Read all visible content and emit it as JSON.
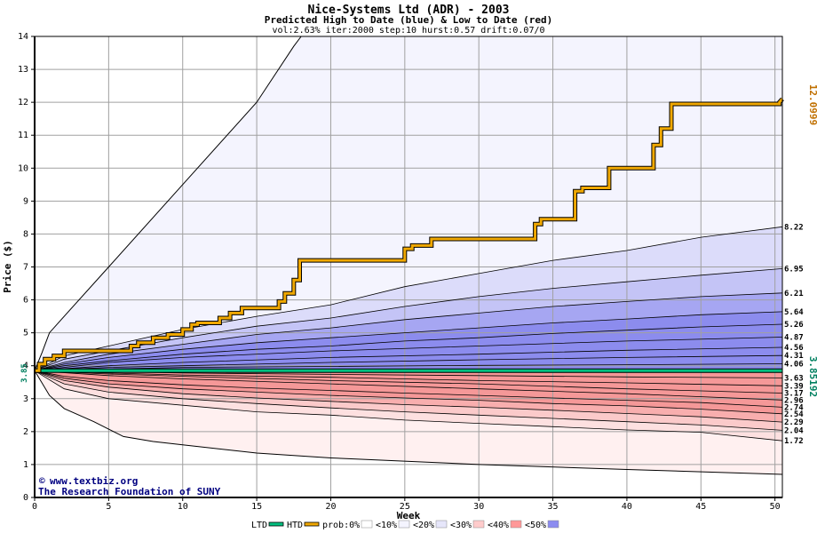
{
  "chart_data": {
    "type": "area",
    "title": "Nice-Systems Ltd (ADR) - 2003",
    "subtitle": "Predicted High to Date (blue) &  Low to Date (red)",
    "params": "vol:2.63% iter:2000 step:10 hurst:0.57 drift:0.07/0",
    "xlabel": "Week",
    "ylabel": "Price ($)",
    "xlim": [
      0,
      50.5
    ],
    "ylim": [
      0,
      14
    ],
    "x_ticks": [
      "0",
      "5",
      "10",
      "15",
      "20",
      "25",
      "30",
      "35",
      "40",
      "45",
      "50"
    ],
    "y_ticks": [
      "0",
      "1",
      "2",
      "3",
      "4",
      "5",
      "6",
      "7",
      "8",
      "9",
      "10",
      "11",
      "12",
      "13",
      "14"
    ],
    "grid": true,
    "start_price": 3.85,
    "start_label": "3.85",
    "high_final_label": "12.0999",
    "low_final_label": "3.85192",
    "end_levels": [
      "8.22",
      "6.95",
      "6.21",
      "5.64",
      "5.26",
      "4.87",
      "4.56",
      "4.31",
      "4.06",
      "3.63",
      "3.39",
      "3.17",
      "2.96",
      "2.74",
      "2.54",
      "2.29",
      "2.04",
      "1.72"
    ],
    "upper_envelope": {
      "x": [
        0,
        0.5,
        1,
        2,
        5,
        10,
        15,
        17.5,
        18
      ],
      "y": [
        3.85,
        4.4,
        5.0,
        5.5,
        7.0,
        9.5,
        12.0,
        13.7,
        14
      ]
    },
    "lower_envelope": {
      "x": [
        0,
        1,
        2,
        4,
        6,
        8,
        10,
        15,
        20,
        30,
        40,
        50.5
      ],
      "y": [
        3.85,
        3.1,
        2.7,
        2.3,
        1.85,
        1.7,
        1.6,
        1.35,
        1.2,
        1.0,
        0.85,
        0.7
      ]
    },
    "high_bands": [
      {
        "name": "<10%",
        "x": [
          0,
          2,
          5,
          10,
          15,
          20,
          25,
          30,
          35,
          40,
          45,
          50.5
        ],
        "y": [
          3.85,
          4.3,
          4.6,
          5.1,
          5.5,
          5.85,
          6.4,
          6.8,
          7.2,
          7.5,
          7.9,
          8.22
        ]
      },
      {
        "name": "<20%",
        "x": [
          0,
          2,
          5,
          10,
          15,
          20,
          25,
          30,
          35,
          40,
          45,
          50.5
        ],
        "y": [
          3.85,
          4.2,
          4.45,
          4.85,
          5.2,
          5.45,
          5.8,
          6.1,
          6.35,
          6.55,
          6.75,
          6.95
        ]
      },
      {
        "name": "<30%",
        "x": [
          0,
          2,
          5,
          10,
          15,
          20,
          25,
          30,
          35,
          40,
          45,
          50.5
        ],
        "y": [
          3.85,
          4.1,
          4.35,
          4.65,
          4.95,
          5.15,
          5.4,
          5.6,
          5.8,
          5.95,
          6.1,
          6.21
        ]
      },
      {
        "name": "<40%",
        "x": [
          0,
          2,
          5,
          10,
          15,
          20,
          25,
          30,
          35,
          40,
          45,
          50.5
        ],
        "y": [
          3.85,
          4.05,
          4.25,
          4.5,
          4.7,
          4.85,
          5.0,
          5.15,
          5.3,
          5.42,
          5.55,
          5.64
        ]
      },
      {
        "name": "<50%",
        "x": [
          0,
          2,
          5,
          10,
          15,
          20,
          25,
          30,
          35,
          40,
          45,
          50.5
        ],
        "y": [
          3.85,
          4.0,
          4.15,
          4.35,
          4.5,
          4.6,
          4.75,
          4.85,
          4.98,
          5.08,
          5.18,
          5.26
        ]
      }
    ],
    "high_inner_lines": [
      {
        "x": [
          0,
          5,
          10,
          20,
          30,
          40,
          50.5
        ],
        "y": [
          3.85,
          4.1,
          4.25,
          4.45,
          4.6,
          4.75,
          4.87
        ]
      },
      {
        "x": [
          0,
          5,
          10,
          20,
          30,
          40,
          50.5
        ],
        "y": [
          3.85,
          4.0,
          4.1,
          4.25,
          4.35,
          4.47,
          4.56
        ]
      },
      {
        "x": [
          0,
          5,
          10,
          20,
          30,
          40,
          50.5
        ],
        "y": [
          3.85,
          3.95,
          4.0,
          4.1,
          4.18,
          4.25,
          4.31
        ]
      },
      {
        "x": [
          0,
          5,
          10,
          20,
          30,
          40,
          50.5
        ],
        "y": [
          3.85,
          3.9,
          3.95,
          3.98,
          4.01,
          4.03,
          4.06
        ]
      }
    ],
    "low_bands": [
      {
        "name": "<10%",
        "x": [
          0,
          2,
          5,
          10,
          15,
          20,
          25,
          30,
          35,
          40,
          45,
          50.5
        ],
        "y": [
          3.85,
          3.3,
          3.0,
          2.8,
          2.6,
          2.5,
          2.35,
          2.25,
          2.15,
          2.05,
          1.98,
          1.72
        ]
      },
      {
        "name": "<20%",
        "x": [
          0,
          2,
          5,
          10,
          15,
          20,
          25,
          30,
          35,
          40,
          45,
          50.5
        ],
        "y": [
          3.85,
          3.45,
          3.2,
          3.0,
          2.85,
          2.72,
          2.6,
          2.5,
          2.4,
          2.3,
          2.2,
          2.04
        ]
      },
      {
        "name": "<30%",
        "x": [
          0,
          2,
          5,
          10,
          15,
          20,
          25,
          30,
          35,
          40,
          45,
          50.5
        ],
        "y": [
          3.85,
          3.55,
          3.35,
          3.15,
          3.02,
          2.92,
          2.82,
          2.74,
          2.65,
          2.55,
          2.45,
          2.29
        ]
      },
      {
        "name": "<40%",
        "x": [
          0,
          2,
          5,
          10,
          15,
          20,
          25,
          30,
          35,
          40,
          45,
          50.5
        ],
        "y": [
          3.85,
          3.62,
          3.45,
          3.3,
          3.2,
          3.1,
          3.02,
          2.95,
          2.85,
          2.78,
          2.68,
          2.54
        ]
      },
      {
        "name": "<50%",
        "x": [
          0,
          2,
          5,
          10,
          15,
          20,
          25,
          30,
          35,
          40,
          45,
          50.5
        ],
        "y": [
          3.85,
          3.68,
          3.55,
          3.42,
          3.32,
          3.25,
          3.17,
          3.1,
          3.02,
          2.95,
          2.88,
          2.74
        ]
      }
    ],
    "low_inner_lines": [
      {
        "x": [
          0,
          5,
          10,
          20,
          30,
          40,
          50.5
        ],
        "y": [
          3.85,
          3.7,
          3.6,
          3.45,
          3.3,
          3.15,
          2.96
        ]
      },
      {
        "x": [
          0,
          5,
          10,
          20,
          30,
          40,
          50.5
        ],
        "y": [
          3.85,
          3.75,
          3.68,
          3.55,
          3.45,
          3.3,
          3.17
        ]
      },
      {
        "x": [
          0,
          5,
          10,
          20,
          30,
          40,
          50.5
        ],
        "y": [
          3.85,
          3.78,
          3.72,
          3.65,
          3.55,
          3.48,
          3.39
        ]
      },
      {
        "x": [
          0,
          5,
          10,
          20,
          30,
          40,
          50.5
        ],
        "y": [
          3.85,
          3.82,
          3.78,
          3.74,
          3.7,
          3.66,
          3.63
        ]
      }
    ],
    "high_to_date": {
      "name": "HTD",
      "x": [
        0,
        0.3,
        0.3,
        0.7,
        0.7,
        1.3,
        1.3,
        2.0,
        2.0,
        6.5,
        6.5,
        7.0,
        7.0,
        8.0,
        8.0,
        9.0,
        9.0,
        10.0,
        10.0,
        10.6,
        10.6,
        11.0,
        11.0,
        12.5,
        12.5,
        13.2,
        13.2,
        14.0,
        14.0,
        16.5,
        16.5,
        16.9,
        16.9,
        17.5,
        17.5,
        17.9,
        17.9,
        25.0,
        25.0,
        25.5,
        25.5,
        26.8,
        26.8,
        33.8,
        33.8,
        34.2,
        34.2,
        36.5,
        36.5,
        37.0,
        37.0,
        38.8,
        38.8,
        41.8,
        41.8,
        42.3,
        42.3,
        43.0,
        43.0,
        50.3,
        50.3,
        50.5
      ],
      "y": [
        3.85,
        3.85,
        4.05,
        4.05,
        4.2,
        4.2,
        4.3,
        4.3,
        4.45,
        4.45,
        4.6,
        4.6,
        4.7,
        4.7,
        4.85,
        4.85,
        4.95,
        4.95,
        5.1,
        5.1,
        5.25,
        5.25,
        5.3,
        5.3,
        5.45,
        5.45,
        5.6,
        5.6,
        5.75,
        5.75,
        5.95,
        5.95,
        6.2,
        6.2,
        6.6,
        6.6,
        7.2,
        7.2,
        7.55,
        7.55,
        7.65,
        7.65,
        7.85,
        7.85,
        8.3,
        8.3,
        8.45,
        8.45,
        9.3,
        9.3,
        9.4,
        9.4,
        10.0,
        10.0,
        10.7,
        10.7,
        11.2,
        11.2,
        11.95,
        11.95,
        12.0,
        12.1
      ]
    },
    "low_to_date": {
      "name": "LTD",
      "x": [
        0,
        50.5
      ],
      "y": [
        3.85,
        3.852
      ]
    },
    "legend": {
      "position": "bottom",
      "items": [
        {
          "label": "LTD",
          "color": "#00c080"
        },
        {
          "label": "HTD",
          "color": "#f0a800"
        },
        {
          "label": "prob:0%",
          "color": "#ffffff"
        },
        {
          "label": "<10%",
          "color": "#f4f4ff"
        },
        {
          "label": "<20%",
          "color": "#e6e6fa"
        },
        {
          "label": "<30%",
          "color": "#ffcccc"
        },
        {
          "label": "<40%",
          "color": "#ff9999"
        },
        {
          "label": "<50%",
          "color": "#8c8cf0"
        }
      ]
    },
    "colors": {
      "high_bands": [
        "#f4f4fe",
        "#dcdcfa",
        "#c4c4f6",
        "#a6a6f2",
        "#8c8cee"
      ],
      "low_bands": [
        "#fff0f0",
        "#fde0e0",
        "#fbcaca",
        "#f8aeae",
        "#f59898"
      ],
      "htd": "#f0a800",
      "ltd": "#00c080",
      "high_label": "#c07000",
      "low_label": "#008060",
      "grid": "#a0a0a0"
    }
  },
  "credits": {
    "site": "www.textbiz.org",
    "org": "The Research Foundation of SUNY"
  }
}
